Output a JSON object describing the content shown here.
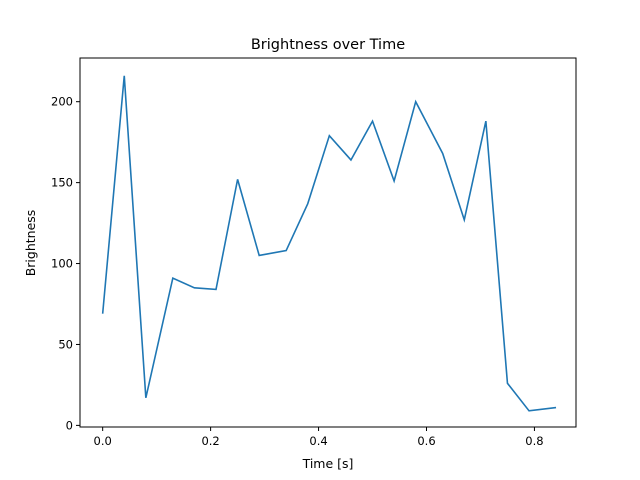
{
  "chart_data": {
    "type": "line",
    "title": "Brightness over Time",
    "xlabel": "Time [s]",
    "ylabel": "Brightness",
    "xlim": [
      -0.042,
      0.877
    ],
    "ylim": [
      -1,
      227
    ],
    "xticks": [
      0.0,
      0.2,
      0.4,
      0.6,
      0.8
    ],
    "xtick_labels": [
      "0.0",
      "0.2",
      "0.4",
      "0.6",
      "0.8"
    ],
    "yticks": [
      0,
      50,
      100,
      150,
      200
    ],
    "ytick_labels": [
      "0",
      "50",
      "100",
      "150",
      "200"
    ],
    "grid": false,
    "series": [
      {
        "name": "Brightness",
        "color": "#1f77b4",
        "x": [
          0.0,
          0.04,
          0.08,
          0.13,
          0.17,
          0.21,
          0.25,
          0.29,
          0.34,
          0.38,
          0.42,
          0.46,
          0.5,
          0.54,
          0.58,
          0.63,
          0.67,
          0.71,
          0.75,
          0.79,
          0.84
        ],
        "y": [
          69,
          216,
          17,
          91,
          85,
          84,
          152,
          105,
          108,
          137,
          179,
          164,
          188,
          151,
          200,
          168,
          127,
          188,
          26,
          9,
          11
        ]
      }
    ]
  }
}
